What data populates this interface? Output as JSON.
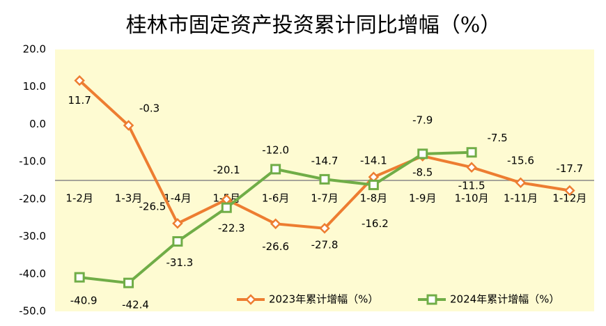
{
  "chart_data": {
    "type": "line",
    "title": "桂林市固定资产投资累计同比增幅（%）",
    "categories": [
      "1-2月",
      "1-3月",
      "1-4月",
      "1-5月",
      "1-6月",
      "1-7月",
      "1-8月",
      "1-9月",
      "1-10月",
      "1-11月",
      "1-12月"
    ],
    "series": [
      {
        "name": "2023年累计增幅（%）",
        "color": "#ed7d31",
        "marker": "diamond",
        "values": [
          11.7,
          -0.3,
          -26.5,
          -20.1,
          -26.6,
          -27.8,
          -14.1,
          -8.5,
          -11.5,
          -15.6,
          -17.7
        ]
      },
      {
        "name": "2024年累计增幅（%）",
        "color": "#70ad47",
        "marker": "square",
        "values": [
          -40.9,
          -42.4,
          -31.3,
          -22.3,
          -12.0,
          -14.7,
          -16.2,
          -7.9,
          -7.5,
          null,
          null
        ],
        "value_labels": [
          "-40.9",
          "-42.4",
          "-31.3",
          "-22.3",
          "-12.0",
          "-14.7",
          "-16.2",
          "-7.9",
          "-7.5",
          null,
          null
        ]
      }
    ],
    "ylim": [
      -50,
      20
    ],
    "yticks": [
      {
        "value": 20,
        "label": "20.0"
      },
      {
        "value": 10,
        "label": "10.0"
      },
      {
        "value": 0,
        "label": "0.0"
      },
      {
        "value": -10,
        "label": "-10.0"
      },
      {
        "value": -20,
        "label": "-20.0"
      },
      {
        "value": -30,
        "label": "-30.0"
      },
      {
        "value": -40,
        "label": "-40.0"
      },
      {
        "value": -50,
        "label": "-50.0"
      }
    ],
    "x_axis_at": -15,
    "legend": "bottom-right",
    "background": "#fefbd2"
  }
}
